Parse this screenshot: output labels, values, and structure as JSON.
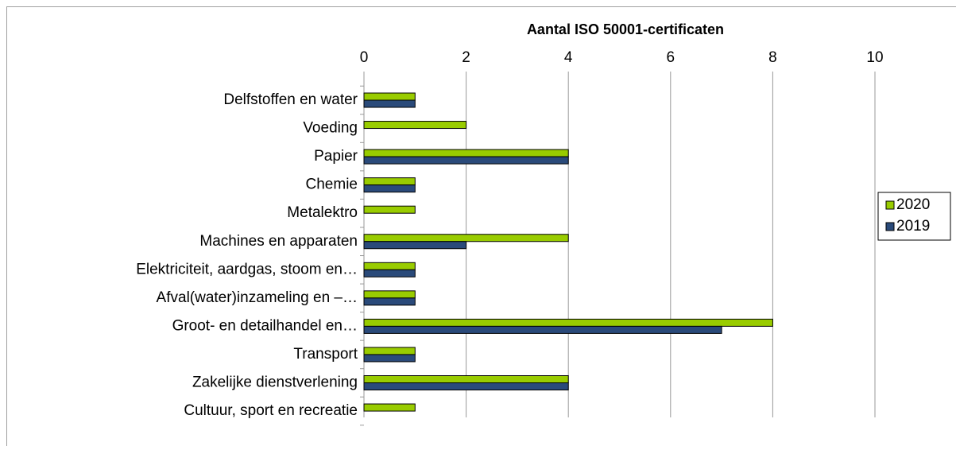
{
  "chart_data": {
    "type": "bar",
    "orientation": "horizontal",
    "title": "Aantal ISO 50001-certificaten",
    "categories": [
      "Delfstoffen en water",
      "Voeding",
      "Papier",
      "Chemie",
      "Metalektro",
      "Machines en apparaten",
      "Elektriciteit, aardgas, stoom en…",
      "Afval(water)inzameling en –…",
      "Groot- en detailhandel en…",
      "Transport",
      "Zakelijke dienstverlening",
      "Cultuur, sport en recreatie"
    ],
    "series": [
      {
        "name": "2020",
        "color": "#99cc00",
        "values": [
          1,
          2,
          4,
          1,
          1,
          4,
          1,
          1,
          8,
          1,
          4,
          1
        ]
      },
      {
        "name": "2019",
        "color": "#2a4a7a",
        "values": [
          1,
          null,
          4,
          1,
          null,
          2,
          1,
          1,
          7,
          1,
          4,
          null
        ]
      }
    ],
    "xlim": [
      0,
      10
    ],
    "xticks": [
      0,
      2,
      4,
      6,
      8,
      10
    ],
    "grid": true,
    "legend": "right"
  }
}
